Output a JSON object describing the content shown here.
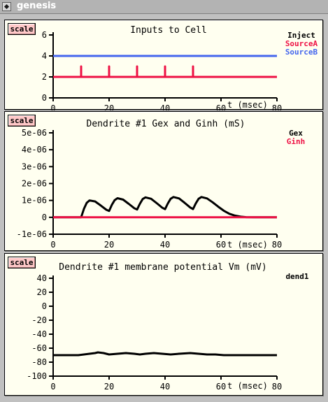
{
  "window": {
    "title": "genesis"
  },
  "colors": {
    "red": "#ee1144",
    "blue": "#4466ee",
    "black": "#000000"
  },
  "graphs": [
    {
      "scale_label": "scale",
      "title": "Inputs to Cell",
      "x_label": "t (msec)",
      "x_ticks": [
        "0",
        "20",
        "40",
        "60",
        "80"
      ],
      "y_ticks": [
        "0",
        "2",
        "4",
        "6"
      ],
      "legend": [
        "Inject",
        "SourceA",
        "SourceB"
      ]
    },
    {
      "scale_label": "scale",
      "title": "Dendrite #1 Gex and Ginh (mS)",
      "x_label": "t (msec)",
      "x_ticks": [
        "0",
        "20",
        "40",
        "60",
        "80"
      ],
      "y_ticks": [
        "-1e-06",
        "0",
        "1e-06",
        "2e-06",
        "3e-06",
        "4e-06",
        "5e-06"
      ],
      "legend": [
        "Gex",
        "Ginh"
      ]
    },
    {
      "scale_label": "scale",
      "title": "Dendrite #1 membrane potential Vm (mV)",
      "x_label": "t (msec)",
      "x_ticks": [
        "0",
        "20",
        "40",
        "60",
        "80"
      ],
      "y_ticks": [
        "-100",
        "-80",
        "-60",
        "-40",
        "-20",
        "0",
        "20",
        "40"
      ],
      "legend": [
        "dend1"
      ]
    }
  ],
  "chart_data": [
    {
      "type": "line",
      "title": "Inputs to Cell",
      "xlabel": "t (msec)",
      "ylabel": "",
      "xlim": [
        0,
        80
      ],
      "ylim": [
        0,
        6
      ],
      "series": [
        {
          "name": "Inject",
          "color": "#000000",
          "x": [],
          "y": []
        },
        {
          "name": "SourceA",
          "color": "#ee1144",
          "x": [
            0,
            10,
            10,
            10,
            20,
            20,
            20,
            30,
            30,
            30,
            40,
            40,
            40,
            50,
            50,
            50,
            80
          ],
          "y": [
            2,
            2,
            3,
            2,
            2,
            3,
            2,
            2,
            3,
            2,
            2,
            3,
            2,
            2,
            3,
            2,
            2
          ]
        },
        {
          "name": "SourceB",
          "color": "#4466ee",
          "x": [
            0,
            80
          ],
          "y": [
            4,
            4
          ]
        }
      ]
    },
    {
      "type": "line",
      "title": "Dendrite #1 Gex and Ginh (mS)",
      "xlabel": "t (msec)",
      "ylabel": "",
      "xlim": [
        0,
        80
      ],
      "ylim": [
        -1e-06,
        5e-06
      ],
      "series": [
        {
          "name": "Gex",
          "color": "#000000",
          "x": [
            0,
            10,
            11,
            12,
            13,
            15,
            17,
            19,
            20,
            21,
            22,
            23,
            25,
            27,
            29,
            30,
            31,
            32,
            33,
            35,
            37,
            39,
            40,
            41,
            42,
            43,
            45,
            47,
            49,
            50,
            51,
            52,
            53,
            55,
            57,
            59,
            61,
            63,
            65,
            67,
            69,
            72,
            80
          ],
          "y": [
            0,
            0,
            5e-07,
            8.6e-07,
            1e-06,
            9.4e-07,
            7e-07,
            4.5e-07,
            3.8e-07,
            7.4e-07,
            1.02e-06,
            1.13e-06,
            1.05e-06,
            8e-07,
            5.4e-07,
            4.6e-07,
            8e-07,
            1.08e-06,
            1.18e-06,
            1.1e-06,
            8.4e-07,
            5.7e-07,
            4.8e-07,
            8.2e-07,
            1.1e-06,
            1.2e-06,
            1.12e-06,
            8.6e-07,
            5.8e-07,
            4.9e-07,
            8.3e-07,
            1.1e-06,
            1.2e-06,
            1.12e-06,
            8.9e-07,
            6.3e-07,
            3.9e-07,
            2.1e-07,
            1e-07,
            4e-08,
            1e-08,
            0,
            0
          ]
        },
        {
          "name": "Ginh",
          "color": "#ee1144",
          "x": [
            0,
            80
          ],
          "y": [
            0,
            0
          ]
        }
      ]
    },
    {
      "type": "line",
      "title": "Dendrite #1 membrane potential Vm (mV)",
      "xlabel": "t (msec)",
      "ylabel": "",
      "xlim": [
        0,
        80
      ],
      "ylim": [
        -100,
        40
      ],
      "series": [
        {
          "name": "dend1",
          "color": "#000000",
          "x": [
            0,
            5,
            9,
            11,
            13,
            15,
            16,
            18,
            20,
            23,
            26,
            29,
            31,
            33,
            36,
            39,
            42,
            45,
            49,
            52,
            55,
            58,
            61,
            64,
            68,
            72,
            76,
            80
          ],
          "y": [
            -70,
            -70,
            -70,
            -69,
            -68,
            -67,
            -66,
            -67,
            -69,
            -68,
            -67,
            -68,
            -69,
            -68,
            -67,
            -68,
            -69,
            -68,
            -67,
            -68,
            -69,
            -69,
            -70,
            -70,
            -70,
            -70,
            -70,
            -70
          ]
        }
      ]
    }
  ]
}
